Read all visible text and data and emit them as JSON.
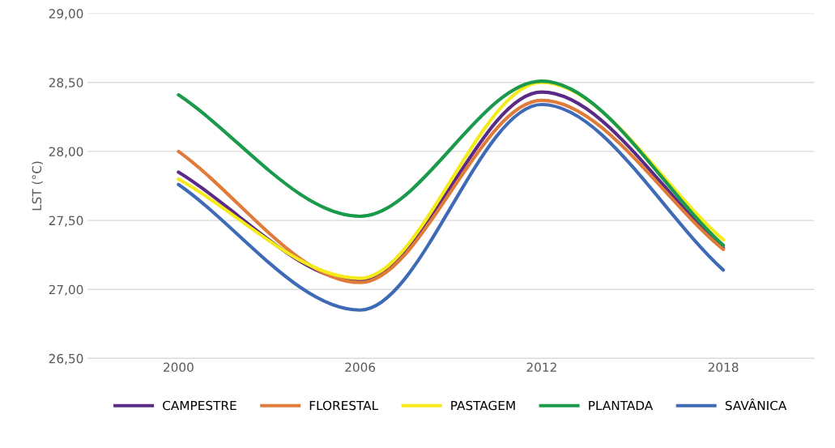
{
  "chart_data": {
    "type": "line",
    "ylabel": "LST (°C)",
    "categories": [
      "2000",
      "2006",
      "2012",
      "2018"
    ],
    "ylim": [
      26.5,
      29.0
    ],
    "yticks": [
      {
        "value": 26.5,
        "label": "26,50"
      },
      {
        "value": 27.0,
        "label": "27,00"
      },
      {
        "value": 27.5,
        "label": "27,50"
      },
      {
        "value": 28.0,
        "label": "28,00"
      },
      {
        "value": 28.5,
        "label": "28,50"
      },
      {
        "value": 29.0,
        "label": "29,00"
      }
    ],
    "grid": "y",
    "legend": "bottom",
    "marker": "none",
    "line_style": "solid",
    "series": [
      {
        "name": "CAMPESTRE",
        "color": "#5b2a86",
        "values": [
          27.85,
          27.06,
          28.43,
          27.3
        ]
      },
      {
        "name": "FLORESTAL",
        "color": "#e07b39",
        "values": [
          28.0,
          27.05,
          28.37,
          27.29
        ]
      },
      {
        "name": "PASTAGEM",
        "color": "#f5ea1a",
        "values": [
          27.8,
          27.08,
          28.5,
          27.36
        ]
      },
      {
        "name": "PLANTADA",
        "color": "#1a9a4a",
        "values": [
          28.41,
          27.53,
          28.51,
          27.32
        ]
      },
      {
        "name": "SAVÂNICA",
        "color": "#3f6ab5",
        "values": [
          27.76,
          26.85,
          28.34,
          27.14
        ]
      }
    ]
  }
}
